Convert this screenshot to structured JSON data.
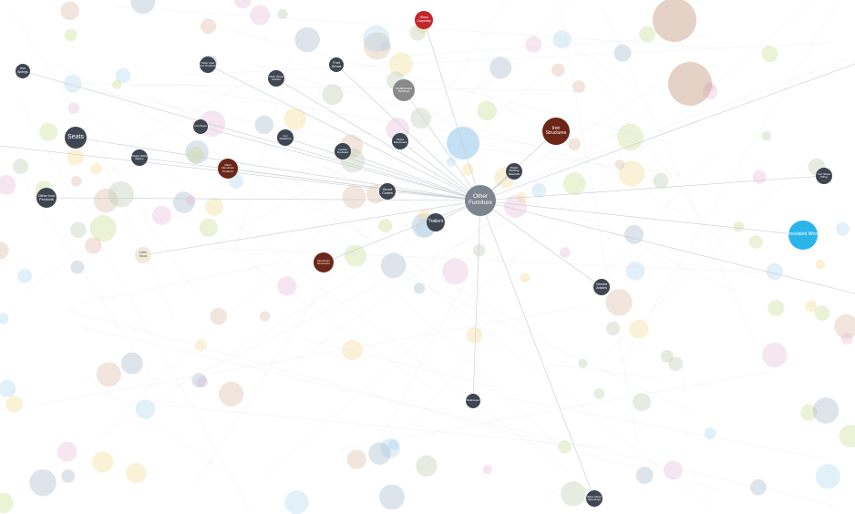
{
  "nodes": [
    {
      "label": "Other Furniture"
    },
    {
      "label": "Wood Carpentry"
    },
    {
      "label": "Iron Springs"
    },
    {
      "label": "Other Cast Iron Products"
    },
    {
      "label": "Other Wood Articles"
    },
    {
      "label": "Fuel Wood"
    },
    {
      "label": "Prefabricated Buildings"
    },
    {
      "label": "Seats"
    },
    {
      "label": "Iron Pipes"
    },
    {
      "label": "Plastic Wash Basins"
    },
    {
      "label": "Iron Radiators"
    },
    {
      "label": "Leather Footwear"
    },
    {
      "label": "Wood Fiberboard"
    },
    {
      "label": "Other Aluminium Products"
    },
    {
      "label": "Iron Structures"
    },
    {
      "label": "Plastic Building Materials"
    },
    {
      "label": "Other Iron Products"
    },
    {
      "label": "Wood Crates"
    },
    {
      "label": "Trailers"
    },
    {
      "label": "Letter Stock"
    },
    {
      "label": "Aluminium Structures"
    },
    {
      "label": "Cement Articles"
    },
    {
      "label": "Insulated Wire"
    },
    {
      "label": "Iron Sheet Piling"
    },
    {
      "label": "Mattresses"
    },
    {
      "label": "Base Metal Mountings"
    }
  ]
}
